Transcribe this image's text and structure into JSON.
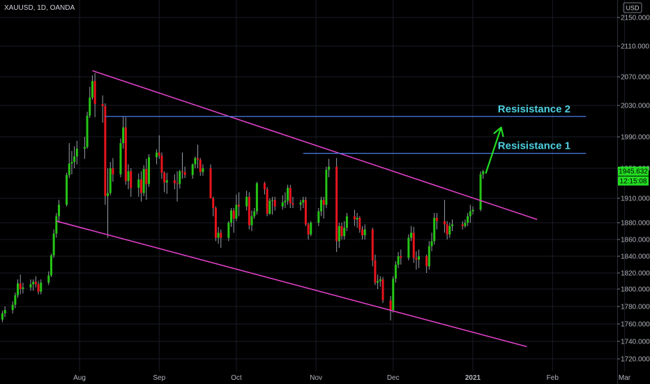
{
  "header": {
    "title": "XAUUSD, 1D, OANDA",
    "currency": "USD"
  },
  "price_badge": {
    "price": "1945.632",
    "countdown": "12:15:08"
  },
  "annotations": [
    {
      "text": "Resisistance 1",
      "color": "#4dd0e1"
    },
    {
      "text": "Resisistance 2",
      "color": "#4dd0e1"
    }
  ],
  "colors": {
    "up": "#26c416",
    "down": "#e8141c",
    "channel": "#e040c8",
    "resistance": "#4a7de8",
    "arrow": "#22dd22",
    "badge": "#22dd22"
  },
  "chart_data": {
    "type": "candlestick",
    "title": "XAUUSD, 1D, OANDA",
    "ylim": [
      1708,
      2165
    ],
    "y_ticks": [
      2150,
      2110,
      2070,
      2030,
      1990,
      1950,
      1910,
      1880,
      1860,
      1840,
      1820,
      1800,
      1780,
      1760,
      1740,
      1720
    ],
    "y_tick_labels": [
      "2150.000",
      "2110.000",
      "2070.000",
      "2030.000",
      "1990.000",
      "1950.000",
      "1910.000",
      "1880.000",
      "1860.000",
      "1840.000",
      "1820.000",
      "1800.000",
      "1780.000",
      "1760.000",
      "1740.000",
      "1720.000"
    ],
    "x_ticks": [
      {
        "label": "Aug",
        "date": "2020-08-01"
      },
      {
        "label": "Sep",
        "date": "2020-09-01"
      },
      {
        "label": "Oct",
        "date": "2020-10-01"
      },
      {
        "label": "Nov",
        "date": "2020-11-01"
      },
      {
        "label": "Dec",
        "date": "2020-12-01"
      },
      {
        "label": "2021",
        "date": "2021-01-01"
      },
      {
        "label": "Feb",
        "date": "2021-02-01"
      },
      {
        "label": "Mar",
        "date": "2021-03-01"
      }
    ],
    "candles": [
      [
        "2020-07-02",
        1765,
        1775,
        1762,
        1772
      ],
      [
        "2020-07-03",
        1772,
        1780,
        1768,
        1776
      ],
      [
        "2020-07-06",
        1776,
        1786,
        1772,
        1782
      ],
      [
        "2020-07-07",
        1782,
        1796,
        1778,
        1793
      ],
      [
        "2020-07-08",
        1793,
        1812,
        1790,
        1807
      ],
      [
        "2020-07-09",
        1807,
        1818,
        1794,
        1800
      ],
      [
        "2020-07-10",
        1800,
        1808,
        1795,
        1802
      ],
      [
        "2020-07-13",
        1802,
        1812,
        1798,
        1806
      ],
      [
        "2020-07-14",
        1806,
        1812,
        1798,
        1809
      ],
      [
        "2020-07-15",
        1809,
        1816,
        1802,
        1806
      ],
      [
        "2020-07-16",
        1806,
        1810,
        1794,
        1797
      ],
      [
        "2020-07-17",
        1797,
        1812,
        1794,
        1808
      ],
      [
        "2020-07-20",
        1808,
        1822,
        1805,
        1817
      ],
      [
        "2020-07-21",
        1817,
        1843,
        1815,
        1841
      ],
      [
        "2020-07-22",
        1841,
        1872,
        1838,
        1867
      ],
      [
        "2020-07-23",
        1867,
        1892,
        1862,
        1888
      ],
      [
        "2020-07-24",
        1888,
        1908,
        1882,
        1902
      ],
      [
        "2020-07-27",
        1902,
        1944,
        1900,
        1941
      ],
      [
        "2020-07-28",
        1941,
        1982,
        1937,
        1956
      ],
      [
        "2020-07-29",
        1956,
        1972,
        1942,
        1958
      ],
      [
        "2020-07-30",
        1958,
        1978,
        1950,
        1965
      ],
      [
        "2020-07-31",
        1965,
        1985,
        1955,
        1975
      ],
      [
        "2020-08-03",
        1975,
        1990,
        1962,
        1977
      ],
      [
        "2020-08-04",
        1977,
        2022,
        1975,
        2017
      ],
      [
        "2020-08-05",
        2017,
        2056,
        2014,
        2041
      ],
      [
        "2020-08-06",
        2041,
        2072,
        2038,
        2064
      ],
      [
        "2020-08-07",
        2064,
        2075,
        2015,
        2032
      ],
      [
        "2020-08-10",
        2032,
        2044,
        2008,
        2029
      ],
      [
        "2020-08-11",
        2029,
        2033,
        1902,
        1913
      ],
      [
        "2020-08-12",
        1913,
        1950,
        1862,
        1917
      ],
      [
        "2020-08-13",
        1917,
        1958,
        1914,
        1950
      ],
      [
        "2020-08-14",
        1950,
        1963,
        1932,
        1942
      ],
      [
        "2020-08-17",
        1942,
        1988,
        1938,
        1982
      ],
      [
        "2020-08-18",
        1982,
        2016,
        1975,
        2002
      ],
      [
        "2020-08-19",
        2002,
        2015,
        1928,
        1933
      ],
      [
        "2020-08-20",
        1933,
        1955,
        1922,
        1946
      ],
      [
        "2020-08-21",
        1946,
        1950,
        1912,
        1924
      ],
      [
        "2020-08-24",
        1924,
        1943,
        1912,
        1935
      ],
      [
        "2020-08-25",
        1935,
        1946,
        1906,
        1917
      ],
      [
        "2020-08-26",
        1917,
        1954,
        1913,
        1949
      ],
      [
        "2020-08-27",
        1949,
        1962,
        1908,
        1929
      ],
      [
        "2020-08-28",
        1929,
        1968,
        1925,
        1964
      ],
      [
        "2020-08-31",
        1964,
        1974,
        1955,
        1970
      ],
      [
        "2020-09-01",
        1970,
        1992,
        1962,
        1966
      ],
      [
        "2020-09-02",
        1966,
        1970,
        1936,
        1944
      ],
      [
        "2020-09-03",
        1944,
        1946,
        1918,
        1931
      ],
      [
        "2020-09-04",
        1931,
        1944,
        1916,
        1934
      ],
      [
        "2020-09-07",
        1934,
        1942,
        1922,
        1930
      ],
      [
        "2020-09-08",
        1930,
        1946,
        1906,
        1929
      ],
      [
        "2020-09-09",
        1929,
        1948,
        1923,
        1946
      ],
      [
        "2020-09-10",
        1946,
        1970,
        1936,
        1945
      ],
      [
        "2020-09-11",
        1945,
        1952,
        1937,
        1941
      ],
      [
        "2020-09-14",
        1941,
        1956,
        1936,
        1955
      ],
      [
        "2020-09-15",
        1955,
        1965,
        1950,
        1963
      ],
      [
        "2020-09-16",
        1963,
        1980,
        1950,
        1961
      ],
      [
        "2020-09-17",
        1961,
        1963,
        1940,
        1945
      ],
      [
        "2020-09-18",
        1945,
        1955,
        1940,
        1950
      ],
      [
        "2020-09-21",
        1950,
        1955,
        1912,
        1910
      ],
      [
        "2020-09-22",
        1910,
        1912,
        1888,
        1898
      ],
      [
        "2020-09-23",
        1898,
        1900,
        1858,
        1862
      ],
      [
        "2020-09-24",
        1862,
        1875,
        1855,
        1868
      ],
      [
        "2020-09-25",
        1868,
        1872,
        1850,
        1862
      ],
      [
        "2020-09-28",
        1862,
        1882,
        1858,
        1880
      ],
      [
        "2020-09-29",
        1880,
        1898,
        1875,
        1895
      ],
      [
        "2020-09-30",
        1895,
        1898,
        1868,
        1885
      ],
      [
        "2020-10-01",
        1885,
        1915,
        1882,
        1902
      ],
      [
        "2020-10-02",
        1902,
        1918,
        1888,
        1900
      ],
      [
        "2020-10-05",
        1900,
        1920,
        1895,
        1912
      ],
      [
        "2020-10-06",
        1912,
        1918,
        1872,
        1877
      ],
      [
        "2020-10-07",
        1877,
        1895,
        1870,
        1888
      ],
      [
        "2020-10-08",
        1888,
        1898,
        1885,
        1894
      ],
      [
        "2020-10-09",
        1894,
        1932,
        1890,
        1930
      ],
      [
        "2020-10-12",
        1930,
        1932,
        1915,
        1922
      ],
      [
        "2020-10-13",
        1922,
        1925,
        1888,
        1891
      ],
      [
        "2020-10-14",
        1891,
        1910,
        1890,
        1907
      ],
      [
        "2020-10-15",
        1907,
        1912,
        1890,
        1908
      ],
      [
        "2020-10-16",
        1908,
        1912,
        1895,
        1900
      ],
      [
        "2020-10-19",
        1900,
        1914,
        1896,
        1905
      ],
      [
        "2020-10-20",
        1905,
        1918,
        1898,
        1907
      ],
      [
        "2020-10-21",
        1907,
        1928,
        1902,
        1924
      ],
      [
        "2020-10-22",
        1924,
        1928,
        1898,
        1904
      ],
      [
        "2020-10-23",
        1904,
        1912,
        1898,
        1902
      ],
      [
        "2020-10-26",
        1902,
        1908,
        1895,
        1905
      ],
      [
        "2020-10-27",
        1905,
        1912,
        1898,
        1908
      ],
      [
        "2020-10-28",
        1908,
        1912,
        1876,
        1878
      ],
      [
        "2020-10-29",
        1878,
        1880,
        1860,
        1866
      ],
      [
        "2020-10-30",
        1866,
        1882,
        1864,
        1880
      ],
      [
        "2020-11-02",
        1880,
        1898,
        1876,
        1894
      ],
      [
        "2020-11-03",
        1894,
        1912,
        1888,
        1908
      ],
      [
        "2020-11-04",
        1908,
        1912,
        1885,
        1902
      ],
      [
        "2020-11-05",
        1902,
        1952,
        1898,
        1948
      ],
      [
        "2020-11-06",
        1948,
        1962,
        1938,
        1952
      ],
      [
        "2020-11-09",
        1952,
        1963,
        1845,
        1858
      ],
      [
        "2020-11-10",
        1858,
        1880,
        1850,
        1876
      ],
      [
        "2020-11-11",
        1876,
        1880,
        1860,
        1864
      ],
      [
        "2020-11-12",
        1864,
        1882,
        1860,
        1874
      ],
      [
        "2020-11-13",
        1874,
        1892,
        1870,
        1888
      ],
      [
        "2020-11-16",
        1888,
        1896,
        1876,
        1884
      ],
      [
        "2020-11-17",
        1884,
        1892,
        1874,
        1886
      ],
      [
        "2020-11-18",
        1886,
        1888,
        1868,
        1872
      ],
      [
        "2020-11-19",
        1872,
        1876,
        1860,
        1865
      ],
      [
        "2020-11-20",
        1865,
        1878,
        1860,
        1872
      ],
      [
        "2020-11-23",
        1872,
        1874,
        1828,
        1835
      ],
      [
        "2020-11-24",
        1835,
        1842,
        1805,
        1808
      ],
      [
        "2020-11-25",
        1808,
        1818,
        1800,
        1810
      ],
      [
        "2020-11-26",
        1810,
        1816,
        1803,
        1812
      ],
      [
        "2020-11-27",
        1812,
        1815,
        1784,
        1787
      ],
      [
        "2020-11-30",
        1787,
        1792,
        1764,
        1776
      ],
      [
        "2020-12-01",
        1776,
        1816,
        1773,
        1813
      ],
      [
        "2020-12-02",
        1813,
        1834,
        1808,
        1830
      ],
      [
        "2020-12-03",
        1830,
        1845,
        1826,
        1840
      ],
      [
        "2020-12-04",
        1840,
        1848,
        1830,
        1838
      ],
      [
        "2020-12-07",
        1838,
        1866,
        1835,
        1862
      ],
      [
        "2020-12-08",
        1862,
        1876,
        1858,
        1868
      ],
      [
        "2020-12-09",
        1868,
        1875,
        1832,
        1838
      ],
      [
        "2020-12-10",
        1838,
        1846,
        1824,
        1836
      ],
      [
        "2020-12-11",
        1836,
        1848,
        1826,
        1840
      ],
      [
        "2020-12-14",
        1840,
        1842,
        1820,
        1828
      ],
      [
        "2020-12-15",
        1828,
        1858,
        1824,
        1852
      ],
      [
        "2020-12-16",
        1852,
        1868,
        1846,
        1858
      ],
      [
        "2020-12-17",
        1858,
        1892,
        1854,
        1886
      ],
      [
        "2020-12-18",
        1886,
        1892,
        1872,
        1882
      ],
      [
        "2020-12-21",
        1882,
        1908,
        1868,
        1878
      ],
      [
        "2020-12-22",
        1878,
        1882,
        1860,
        1866
      ],
      [
        "2020-12-23",
        1866,
        1880,
        1862,
        1876
      ],
      [
        "2020-12-24",
        1876,
        1884,
        1870,
        1878
      ],
      [
        "2020-12-28",
        1878,
        1882,
        1872,
        1876
      ],
      [
        "2020-12-29",
        1876,
        1884,
        1874,
        1880
      ],
      [
        "2020-12-30",
        1880,
        1892,
        1876,
        1888
      ],
      [
        "2020-12-31",
        1888,
        1902,
        1880,
        1894
      ],
      [
        "2021-01-01",
        1894,
        1900,
        1890,
        1896
      ],
      [
        "2021-01-04",
        1896,
        1946,
        1894,
        1942
      ],
      [
        "2021-01-05",
        1942,
        1948,
        1936,
        1946
      ]
    ],
    "trendlines": [
      {
        "name": "upper-channel",
        "from": [
          "2020-08-06",
          2078
        ],
        "to": [
          "2021-01-26",
          1884
        ]
      },
      {
        "name": "lower-channel",
        "from": [
          "2020-07-23",
          1882
        ],
        "to": [
          "2021-01-22",
          1734
        ]
      }
    ],
    "resistance_levels": [
      {
        "label": "Resisistance 1",
        "price": 1969,
        "from": "2020-10-27",
        "to": "2021-02-14"
      },
      {
        "label": "Resisistance 2",
        "price": 2016,
        "from": "2020-08-11",
        "to": "2021-02-14"
      }
    ],
    "projection_arrow": {
      "from": [
        "2021-01-06",
        1943
      ],
      "to": [
        "2021-01-12",
        2002
      ]
    },
    "last_price": 1945.632
  }
}
